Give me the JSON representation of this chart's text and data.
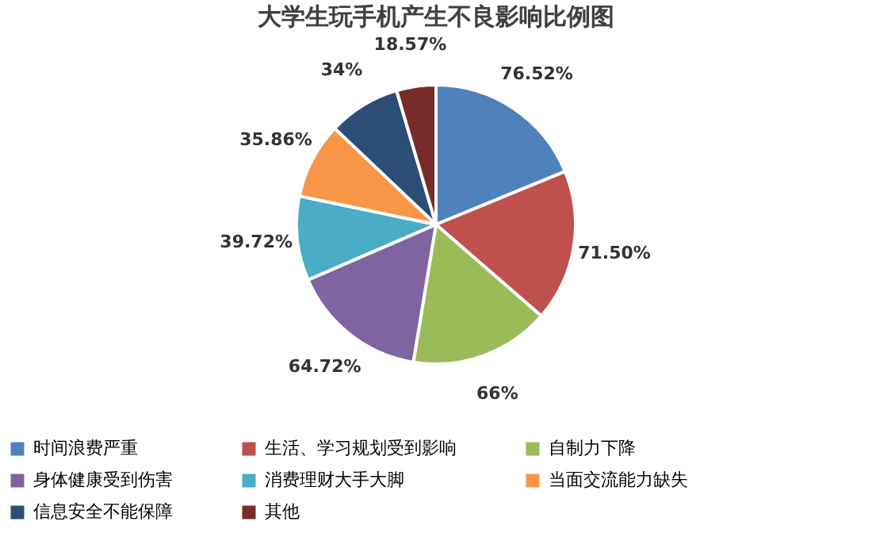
{
  "chart_data": {
    "type": "pie",
    "title": "大学生玩手机产生不良影响比例图",
    "categories": [
      "时间浪费严重",
      "生活、学习规划受到影响",
      "自制力下降",
      "身体健康受到伤害",
      "消费理财大手大脚",
      "当面交流能力缺失",
      "信息安全不能保障",
      "其他"
    ],
    "values": [
      76.52,
      71.5,
      66,
      64.72,
      39.72,
      35.86,
      34,
      18.57
    ],
    "value_labels": [
      "76.52%",
      "71.50%",
      "66%",
      "64.72%",
      "39.72%",
      "35.86%",
      "34%",
      "18.57%"
    ],
    "colors": [
      "#4f81bd",
      "#c0504d",
      "#9bbb59",
      "#8064a2",
      "#4bacc6",
      "#f79646",
      "#2c4d75",
      "#772c2a"
    ],
    "legend": "bottom"
  }
}
